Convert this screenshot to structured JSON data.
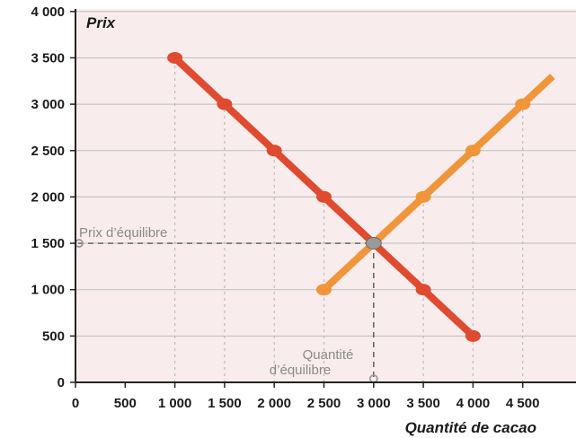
{
  "chart_data": {
    "type": "line",
    "ylabel": "Prix",
    "xlabel": "Quantité de cacao",
    "xlim": [
      0,
      5000
    ],
    "ylim": [
      0,
      4000
    ],
    "x_ticks": [
      0,
      500,
      1000,
      1500,
      2000,
      2500,
      3000,
      3500,
      4000,
      4500
    ],
    "x_tick_labels": [
      "0",
      "500",
      "1 000",
      "1 500",
      "2 000",
      "2 500",
      "3 000",
      "3 500",
      "4 000",
      "4 500"
    ],
    "y_ticks": [
      0,
      500,
      1000,
      1500,
      2000,
      2500,
      3000,
      3500,
      4000
    ],
    "y_tick_labels": [
      "0",
      "500",
      "1 000",
      "1 500",
      "2 000",
      "2 500",
      "3 000",
      "3 500",
      "4 000"
    ],
    "grid": "vertical dotted",
    "series": [
      {
        "color": "#e04a2f",
        "x": [
          1000,
          1500,
          2000,
          2500,
          3000,
          3500,
          4000
        ],
        "y": [
          3500,
          3000,
          2500,
          2000,
          1500,
          1000,
          500
        ]
      },
      {
        "color": "#f0953a",
        "x": [
          2500,
          3000,
          3500,
          4000,
          4500
        ],
        "y": [
          1000,
          1500,
          2000,
          2500,
          3000
        ],
        "extends_to": [
          4800,
          3300
        ]
      }
    ],
    "equilibrium": {
      "x": 3000,
      "y": 1500
    },
    "annotations": {
      "price": "Prix d’équilibre",
      "quantity_line1": "Quantité",
      "quantity_line2": "d’équilibre"
    },
    "colors": {
      "background": "#f9ecec",
      "grid": "#bdbdbd",
      "axis": "#222222",
      "marker_gray": "#999999"
    }
  }
}
